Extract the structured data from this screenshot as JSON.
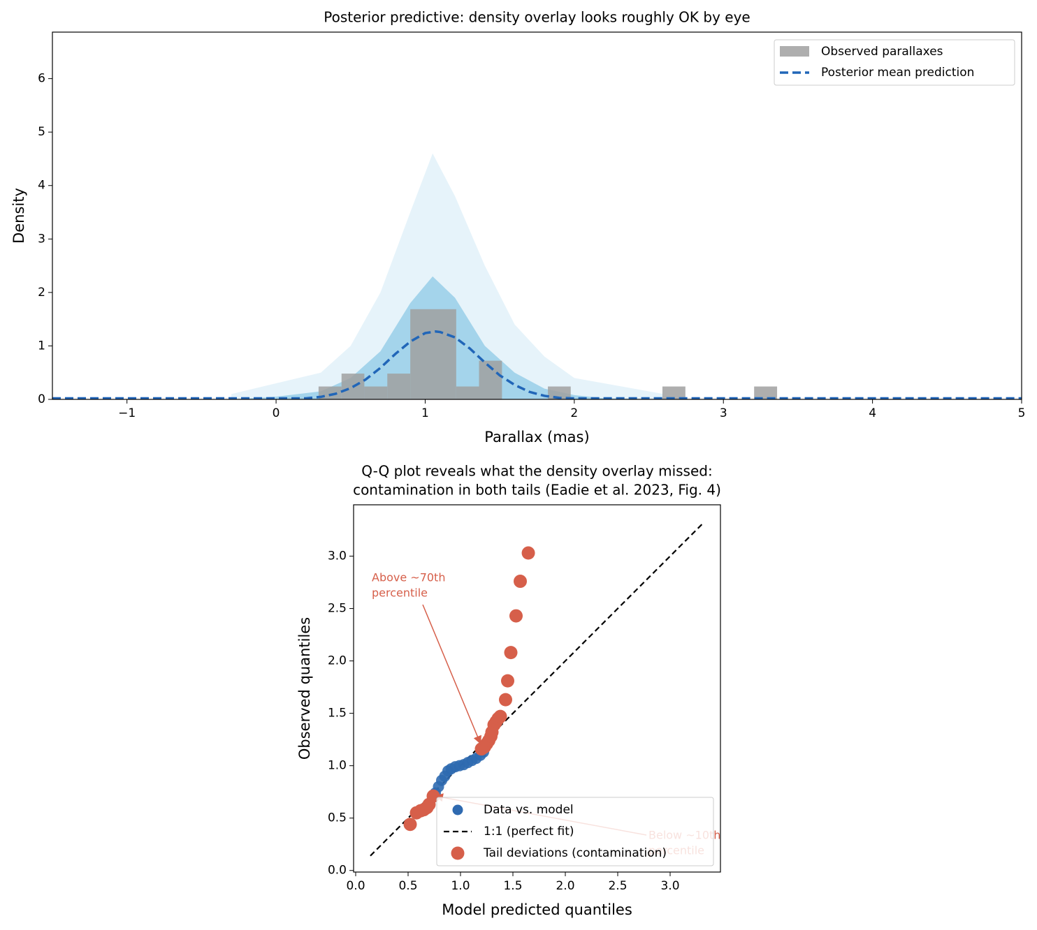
{
  "chart_data": [
    {
      "type": "histogram",
      "title": "Posterior predictive: density overlay looks roughly OK by eye",
      "xlabel": "Parallax (mas)",
      "ylabel": "Density",
      "xlim": [
        -1.5,
        5
      ],
      "ylim": [
        0,
        6.87
      ],
      "xticks": [
        {
          "value": -1,
          "label": "−1"
        },
        0,
        1,
        2,
        3,
        4,
        5
      ],
      "yticks": [
        0,
        1,
        2,
        3,
        4,
        5,
        6
      ],
      "legend": "upper right",
      "name": "Observed parallaxes",
      "color": "#a0a0a0",
      "bins": [
        0.285,
        0.439,
        0.592,
        0.746,
        0.9,
        1.054,
        1.208,
        1.361,
        1.515,
        1.669,
        1.823,
        1.976,
        2.13,
        2.284,
        2.438,
        2.591,
        2.745,
        2.899,
        3.053,
        3.206,
        3.36
      ],
      "values": [
        0.241,
        0.482,
        0.241,
        0.482,
        1.687,
        1.687,
        0.241,
        0.723,
        0,
        0,
        0.241,
        0,
        0,
        0,
        0,
        0.241,
        0,
        0,
        0,
        0.241
      ],
      "draws": {
        "color": "#8ec9e6",
        "x": [
          -0.3,
          0,
          0.3,
          0.5,
          0.7,
          0.9,
          1.05,
          1.2,
          1.4,
          1.6,
          1.8,
          2.0,
          2.2,
          2.6
        ],
        "core": [
          0,
          0.05,
          0.15,
          0.4,
          0.9,
          1.8,
          2.3,
          1.9,
          1.0,
          0.5,
          0.2,
          0.08,
          0.02,
          0
        ],
        "outer": [
          0.1,
          0.3,
          0.5,
          1.0,
          2.0,
          3.5,
          4.6,
          3.8,
          2.5,
          1.4,
          0.8,
          0.4,
          0.3,
          0.1
        ]
      },
      "line": {
        "name": "Posterior mean prediction",
        "color": "#2166b8",
        "x": [
          -1.5,
          -1,
          0,
          0.2,
          0.3,
          0.4,
          0.5,
          0.6,
          0.7,
          0.8,
          0.9,
          1.0,
          1.07,
          1.1,
          1.2,
          1.3,
          1.4,
          1.5,
          1.6,
          1.7,
          1.8,
          1.9,
          2.0,
          2.5,
          3,
          4,
          5
        ],
        "values": [
          0.02,
          0.02,
          0.02,
          0.02,
          0.047,
          0.105,
          0.21,
          0.37,
          0.59,
          0.85,
          1.08,
          1.24,
          1.27,
          1.26,
          1.16,
          0.95,
          0.69,
          0.45,
          0.27,
          0.14,
          0.066,
          0.028,
          0.02,
          0.02,
          0.02,
          0.02,
          0.02
        ]
      }
    },
    {
      "type": "scatter",
      "title": [
        "Q-Q plot reveals what the density overlay missed:",
        "contamination in both tails (Eadie et al. 2023, Fig. 4)"
      ],
      "xlabel": "Model predicted quantiles",
      "ylabel": "Observed quantiles",
      "xlim": [
        -0.02,
        3.48
      ],
      "ylim": [
        -0.015,
        3.49
      ],
      "xticks": [
        {
          "value": 0,
          "label": "0.0"
        },
        {
          "value": 0.5,
          "label": "0.5"
        },
        {
          "value": 1,
          "label": "1.0"
        },
        {
          "value": 1.5,
          "label": "1.5"
        },
        {
          "value": 2,
          "label": "2.0"
        },
        {
          "value": 2.5,
          "label": "2.5"
        },
        {
          "value": 3,
          "label": "3.0"
        }
      ],
      "yticks": [
        {
          "value": 0,
          "label": "0.0"
        },
        {
          "value": 0.5,
          "label": "0.5"
        },
        {
          "value": 1,
          "label": "1.0"
        },
        {
          "value": 1.5,
          "label": "1.5"
        },
        {
          "value": 2,
          "label": "2.0"
        },
        {
          "value": 2.5,
          "label": "2.5"
        },
        {
          "value": 3,
          "label": "3.0"
        }
      ],
      "legend": "lower right",
      "series": [
        {
          "name": "Data vs. model",
          "color": "#2f6ab0",
          "x": [
            0.76,
            0.79,
            0.82,
            0.85,
            0.88,
            0.91,
            0.95,
            0.99,
            1.03,
            1.07,
            1.11,
            1.15,
            1.19,
            1.22
          ],
          "values": [
            0.74,
            0.8,
            0.86,
            0.9,
            0.95,
            0.97,
            0.99,
            1.0,
            1.01,
            1.03,
            1.05,
            1.07,
            1.1,
            1.13
          ]
        },
        {
          "name": "Tail deviations (contamination)",
          "color": "#d65f4a",
          "x": [
            0.52,
            0.58,
            0.62,
            0.65,
            0.68,
            0.7,
            0.74,
            1.2,
            1.23,
            1.25,
            1.27,
            1.29,
            1.3,
            1.32,
            1.34,
            1.36,
            1.38,
            1.43,
            1.45,
            1.48,
            1.53,
            1.57,
            1.647
          ],
          "values": [
            0.44,
            0.55,
            0.57,
            0.58,
            0.6,
            0.63,
            0.71,
            1.16,
            1.18,
            1.21,
            1.24,
            1.28,
            1.32,
            1.39,
            1.42,
            1.45,
            1.47,
            1.63,
            1.81,
            2.08,
            2.43,
            2.76,
            3.03
          ]
        }
      ],
      "line": {
        "name": "1:1 (perfect fit)",
        "color": "#000000",
        "x": [
          0.14,
          3.32
        ],
        "values": [
          0.14,
          3.32
        ]
      },
      "annotations": [
        [
          "Above ~70th",
          "percentile"
        ],
        [
          "Below ~10th",
          "percentile"
        ]
      ]
    }
  ]
}
